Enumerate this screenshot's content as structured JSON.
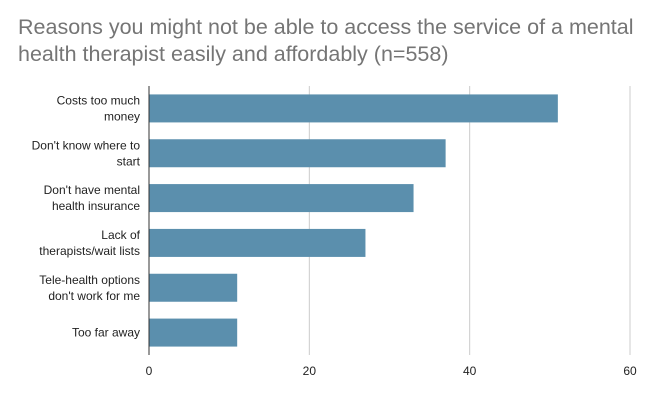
{
  "chart_data": {
    "type": "bar",
    "orientation": "horizontal",
    "title": "Reasons you might not be able to access the service of a mental health therapist easily and affordably (n=558)",
    "categories": [
      [
        "Costs too much",
        "money"
      ],
      [
        "Don't know where to",
        "start"
      ],
      [
        "Don't have mental",
        "health insurance"
      ],
      [
        "Lack of",
        "therapists/wait lists"
      ],
      [
        "Tele-health options",
        "don't work for me"
      ],
      [
        "Too far away"
      ]
    ],
    "values": [
      51,
      37,
      33,
      27,
      11,
      11
    ],
    "xlim": [
      0,
      60
    ],
    "xticks": [
      "0",
      "20",
      "40",
      "60"
    ],
    "xlabel": "",
    "ylabel": "",
    "grid": true,
    "bar_color": "#5b8fad"
  }
}
